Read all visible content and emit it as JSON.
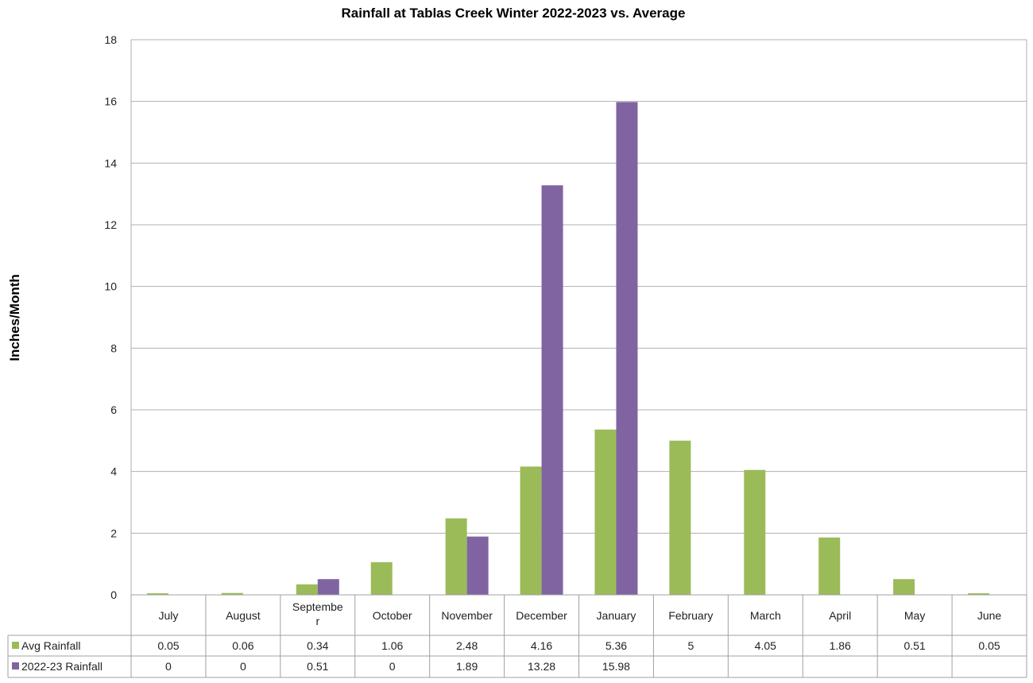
{
  "chart_data": {
    "type": "bar",
    "title": "Rainfall at Tablas Creek Winter 2022-2023 vs. Average",
    "xlabel": "",
    "ylabel": "Inches/Month",
    "ylim": [
      0,
      18
    ],
    "yticks": [
      "0",
      "2",
      "4",
      "6",
      "8",
      "10",
      "12",
      "14",
      "16",
      "18"
    ],
    "grid": true,
    "legend": "data-table-bottom",
    "categories": [
      "July",
      "August",
      "Septembe r",
      "October",
      "November",
      "December",
      "January",
      "February",
      "March",
      "April",
      "May",
      "June"
    ],
    "series": [
      {
        "name": "Avg Rainfall",
        "color": "#9BBB59",
        "values": [
          0.05,
          0.06,
          0.34,
          1.06,
          2.48,
          4.16,
          5.36,
          5,
          4.05,
          1.86,
          0.51,
          0.05
        ],
        "labels": [
          "0.05",
          "0.06",
          "0.34",
          "1.06",
          "2.48",
          "4.16",
          "5.36",
          "5",
          "4.05",
          "1.86",
          "0.51",
          "0.05"
        ]
      },
      {
        "name": "2022-23 Rainfall",
        "color": "#8064A2",
        "values": [
          0,
          0,
          0.51,
          0,
          1.89,
          13.28,
          15.98,
          null,
          null,
          null,
          null,
          null
        ],
        "labels": [
          "0",
          "0",
          "0.51",
          "0",
          "1.89",
          "13.28",
          "15.98",
          "",
          "",
          "",
          "",
          ""
        ]
      }
    ]
  }
}
